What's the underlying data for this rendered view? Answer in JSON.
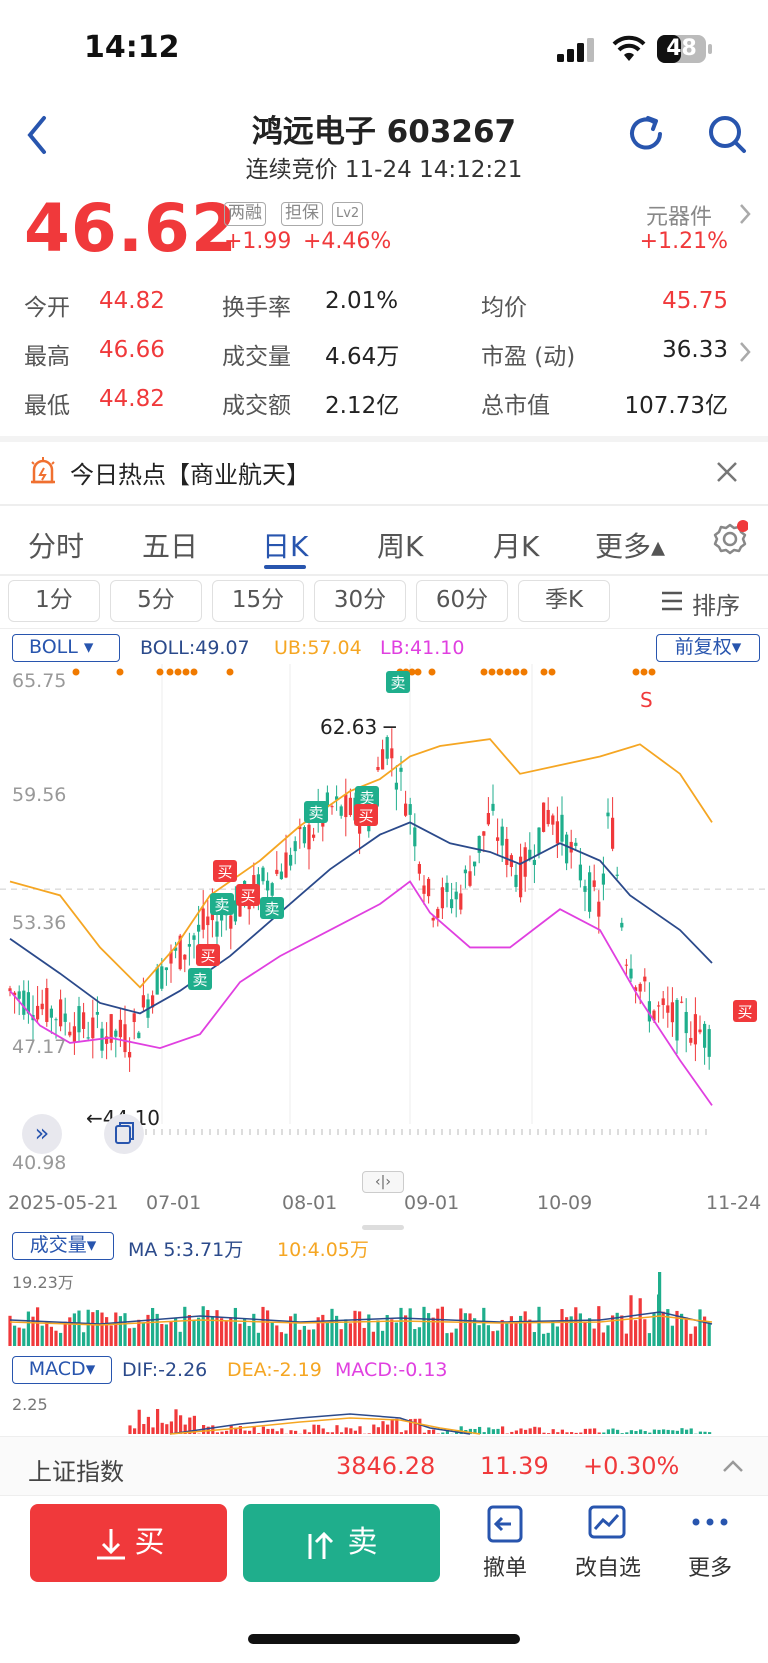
{
  "status_bar": {
    "time": "14:12",
    "battery": "48"
  },
  "header": {
    "name_code": "鸿远电子 603267",
    "subtitle": "连续竞价 11-24 14:12:21"
  },
  "quote": {
    "price": "46.62",
    "change": "+1.99",
    "change_pct": "+4.46%",
    "tags": [
      "两融",
      "担保",
      "Lv2"
    ],
    "sector": "元器件",
    "sector_change": "+1.21%"
  },
  "stats": {
    "open_label": "今开",
    "open": "44.82",
    "high_label": "最高",
    "high": "46.66",
    "low_label": "最低",
    "low": "44.82",
    "turnover_rate_label": "换手率",
    "turnover_rate": "2.01%",
    "volume_label": "成交量",
    "volume": "4.64万",
    "amount_label": "成交额",
    "amount": "2.12亿",
    "avg_label": "均价",
    "avg": "45.75",
    "pe_label": "市盈 (动)",
    "pe": "36.33",
    "mcap_label": "总市值",
    "mcap": "107.73亿"
  },
  "hot": {
    "text": "今日热点【商业航天】"
  },
  "tabs": [
    "分时",
    "五日",
    "日K",
    "周K",
    "月K",
    "更多▴"
  ],
  "active_tab": "日K",
  "periods": [
    "1分",
    "5分",
    "15分",
    "30分",
    "60分",
    "季K"
  ],
  "sort_label": "排序",
  "boll": {
    "name": "BOLL",
    "boll": "BOLL:49.07",
    "ub": "UB:57.04",
    "lb": "LB:41.10",
    "adjust": "前复权"
  },
  "price_axis": [
    "65.75",
    "59.56",
    "53.36",
    "47.17",
    "40.98"
  ],
  "annotations": {
    "high": "62.63",
    "low": "44.10",
    "buy": "买",
    "sell": "卖",
    "s": "S"
  },
  "date_axis": [
    "2025-05-21",
    "07-01",
    "08-01",
    "09-01",
    "10-09",
    "11-24"
  ],
  "volume_panel": {
    "name": "成交量",
    "ma5": "MA 5:3.71万",
    "ma10": "10:4.05万",
    "max": "19.23万"
  },
  "macd_panel": {
    "name": "MACD",
    "dif": "DIF:-2.26",
    "dea": "DEA:-2.19",
    "macd": "MACD:-0.13",
    "max": "2.25"
  },
  "index_bar": {
    "name": "上证指数",
    "value": "3846.28",
    "change": "11.39",
    "pct": "+0.30%"
  },
  "actions": {
    "buy": "买",
    "sell": "卖",
    "cancel": "撤单",
    "watch": "改自选",
    "more": "更多"
  },
  "chart_data": {
    "type": "candlestick",
    "y_range": [
      40.98,
      65.75
    ],
    "x_labels": [
      "2025-05-21",
      "07-01",
      "08-01",
      "09-01",
      "10-09",
      "11-24"
    ],
    "series": [
      {
        "name": "UB",
        "color": "#f5a623"
      },
      {
        "name": "BOLL",
        "color": "#2b4a8b"
      },
      {
        "name": "LB",
        "color": "#e040e0"
      }
    ],
    "max_price": 62.63,
    "min_price": 44.1,
    "last_close": 46.62
  },
  "colors": {
    "up": "#f0393b",
    "down": "#1fae8c",
    "accent": "#2855ae",
    "ub": "#f5a623",
    "mid": "#2b4a8b",
    "lb": "#e040e0"
  }
}
